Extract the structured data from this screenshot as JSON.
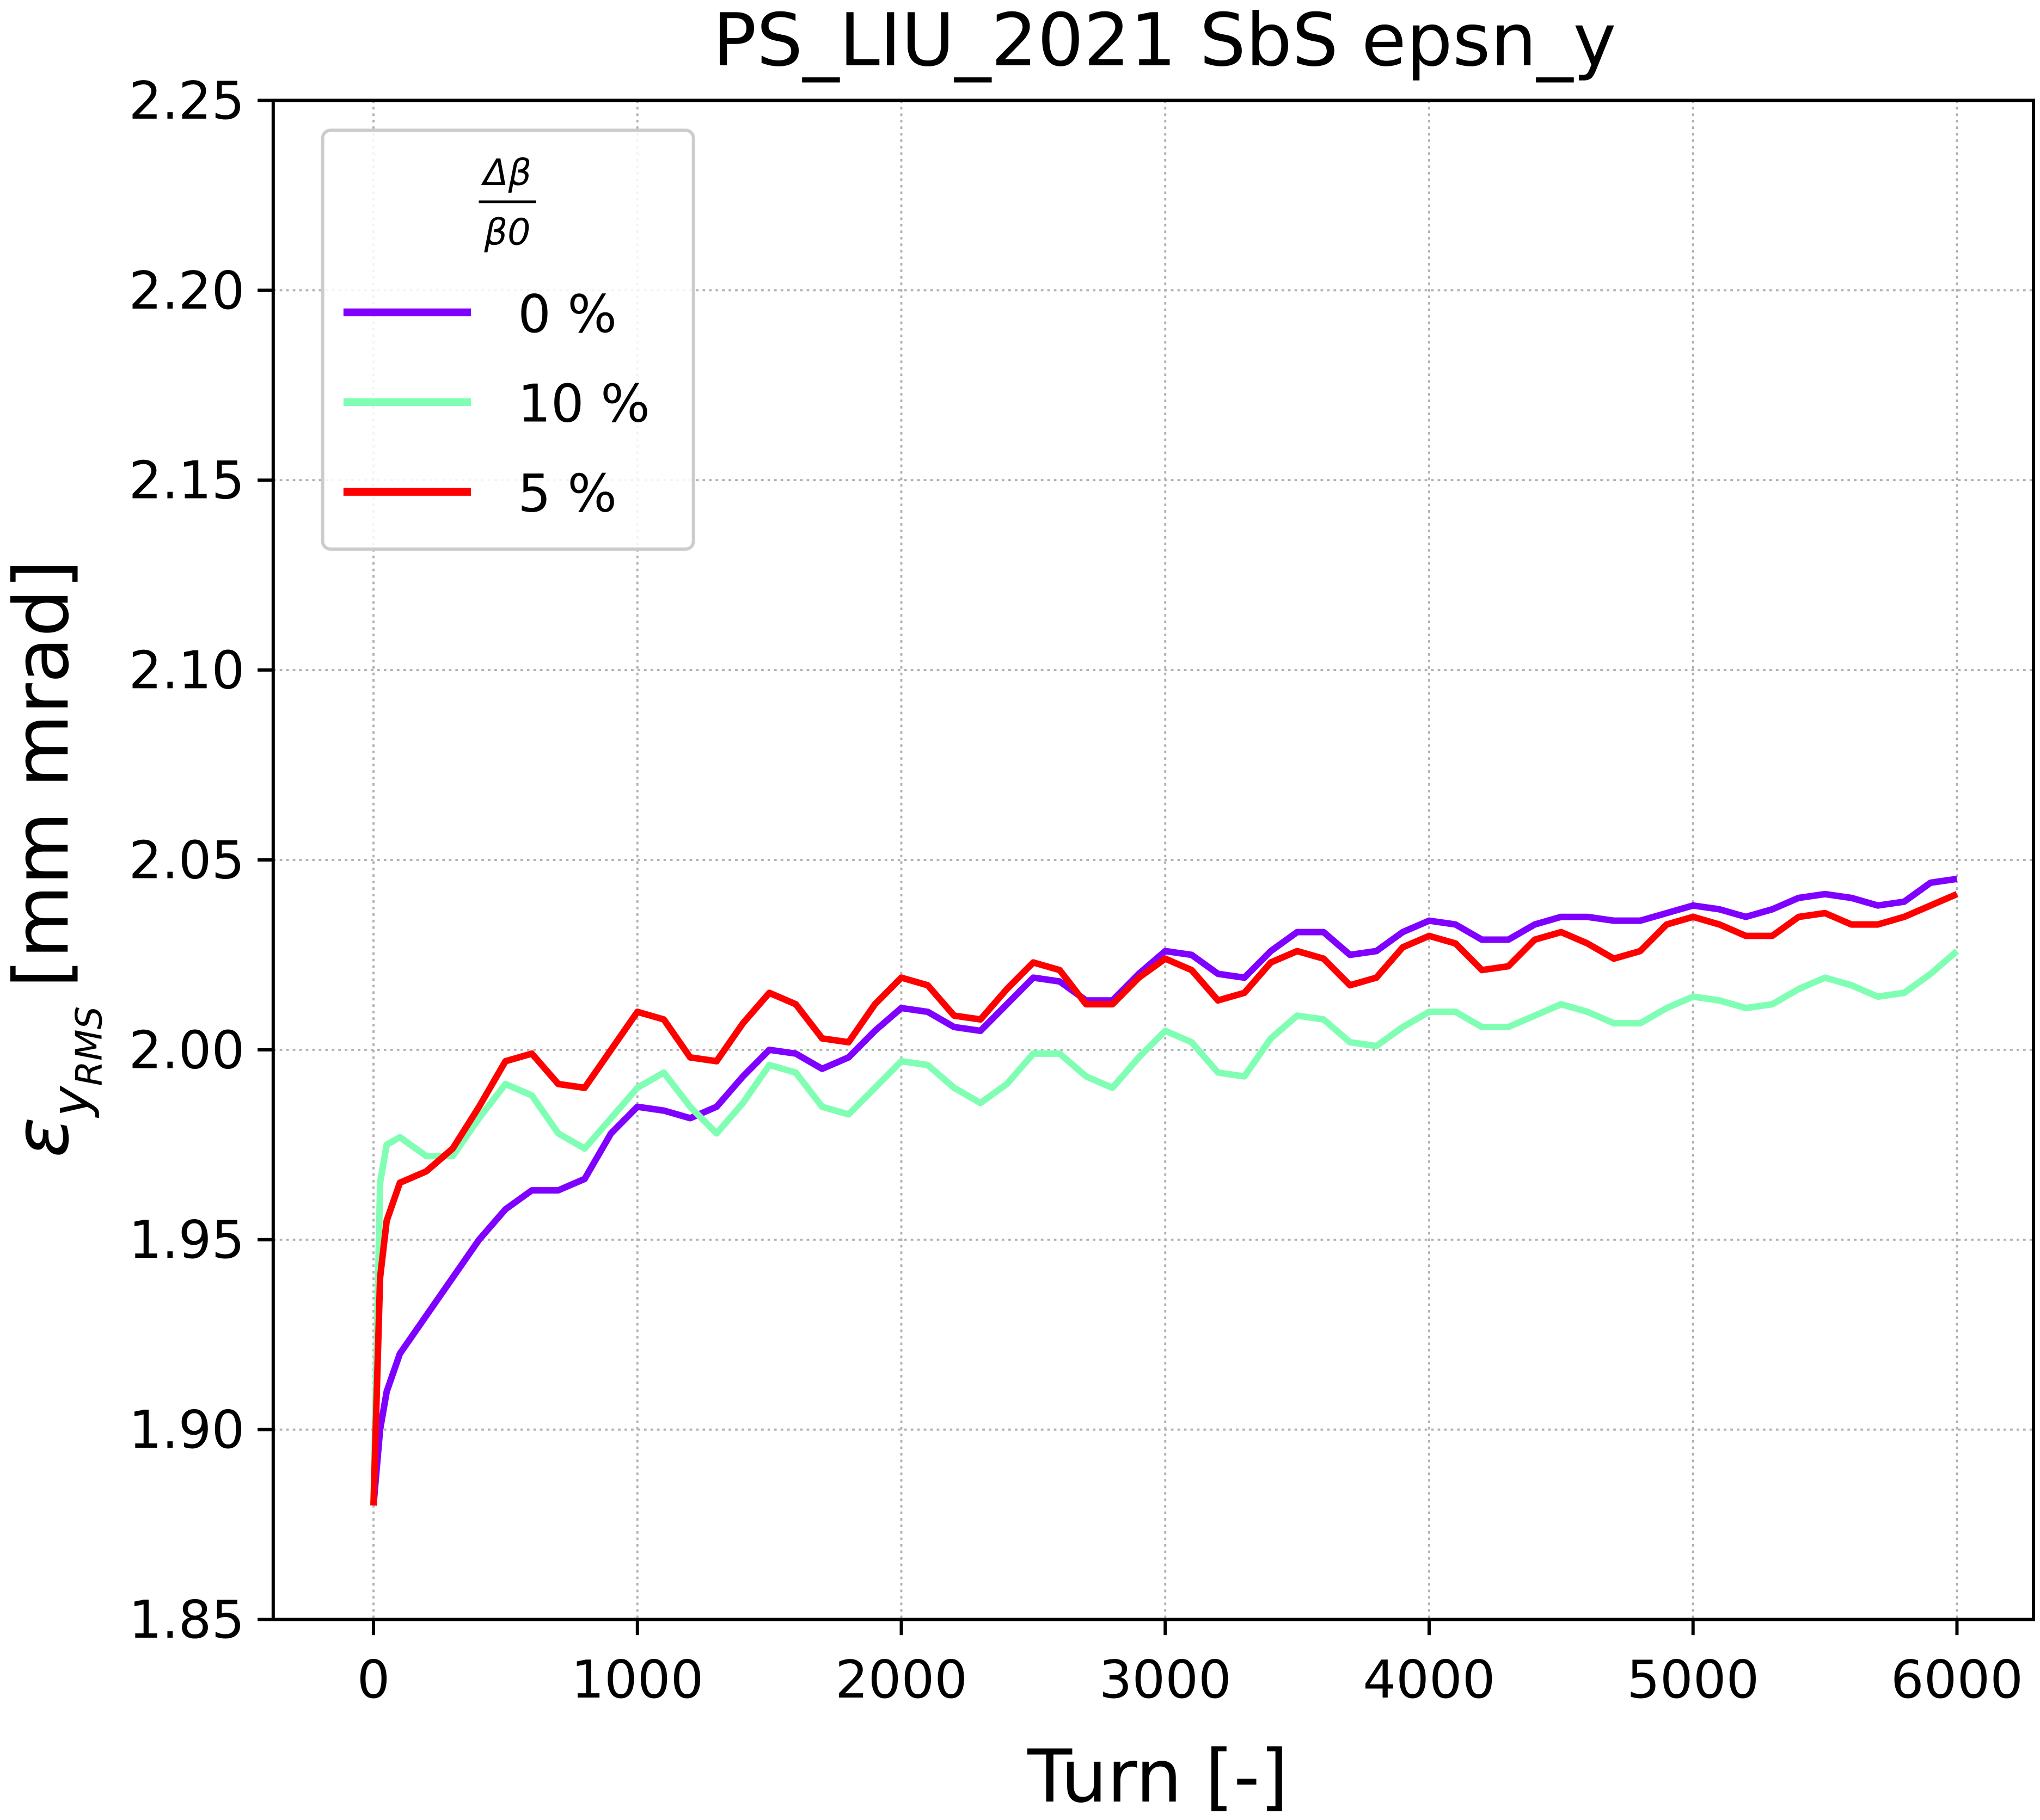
{
  "chart_data": {
    "type": "line",
    "title": "PS_LIU_2021 SbS epsn_y",
    "xlabel": "Turn [-]",
    "ylabel": {
      "symbol": "ε",
      "sub": "y",
      "subsub": "RMS",
      "unit": "[mm mrad]"
    },
    "legend_title": {
      "numerator": "Δβ",
      "denominator": "β0"
    },
    "legend": "upper left",
    "grid": true,
    "xlim": [
      -380,
      6290
    ],
    "xticks": [
      0,
      1000,
      2000,
      3000,
      4000,
      5000,
      6000
    ],
    "ylim": [
      1.85,
      2.25
    ],
    "yticks": [
      1.85,
      {
        "value": 1.9,
        "label": "1.90"
      },
      1.95,
      {
        "value": 2.0,
        "label": "2.00"
      },
      2.05,
      {
        "value": 2.1,
        "label": "2.10"
      },
      2.15,
      {
        "value": 2.2,
        "label": "2.20"
      },
      2.25
    ],
    "x": [
      0,
      25,
      50,
      100,
      200,
      300,
      400,
      500,
      600,
      700,
      800,
      900,
      1000,
      1100,
      1200,
      1300,
      1400,
      1500,
      1600,
      1700,
      1800,
      1900,
      2000,
      2100,
      2200,
      2300,
      2400,
      2500,
      2600,
      2700,
      2800,
      2900,
      3000,
      3100,
      3200,
      3300,
      3400,
      3500,
      3600,
      3700,
      3800,
      3900,
      4000,
      4100,
      4200,
      4300,
      4400,
      4500,
      4600,
      4700,
      4800,
      4900,
      5000,
      5100,
      5200,
      5300,
      5400,
      5500,
      5600,
      5700,
      5800,
      5900,
      6000
    ],
    "series": [
      {
        "name": "0 %",
        "color": "#7f00ff",
        "values": [
          1.88,
          1.9,
          1.91,
          1.92,
          1.93,
          1.94,
          1.95,
          1.958,
          1.963,
          1.963,
          1.966,
          1.978,
          1.985,
          1.984,
          1.982,
          1.985,
          1.993,
          2.0,
          1.999,
          1.995,
          1.998,
          2.005,
          2.011,
          2.01,
          2.006,
          2.005,
          2.012,
          2.019,
          2.018,
          2.013,
          2.013,
          2.02,
          2.026,
          2.025,
          2.02,
          2.019,
          2.026,
          2.031,
          2.031,
          2.025,
          2.026,
          2.031,
          2.034,
          2.033,
          2.029,
          2.029,
          2.033,
          2.035,
          2.035,
          2.034,
          2.034,
          2.036,
          2.038,
          2.037,
          2.035,
          2.037,
          2.04,
          2.041,
          2.04,
          2.038,
          2.039,
          2.044,
          2.045
        ]
      },
      {
        "name": "10 %",
        "color": "#80ffb4",
        "values": [
          1.88,
          1.965,
          1.975,
          1.977,
          1.972,
          1.972,
          1.982,
          1.991,
          1.988,
          1.978,
          1.974,
          1.982,
          1.99,
          1.994,
          1.985,
          1.978,
          1.986,
          1.996,
          1.994,
          1.985,
          1.983,
          1.99,
          1.997,
          1.996,
          1.99,
          1.986,
          1.991,
          1.999,
          1.999,
          1.993,
          1.99,
          1.998,
          2.005,
          2.002,
          1.994,
          1.993,
          2.003,
          2.009,
          2.008,
          2.002,
          2.001,
          2.006,
          2.01,
          2.01,
          2.006,
          2.006,
          2.009,
          2.012,
          2.01,
          2.007,
          2.007,
          2.011,
          2.014,
          2.013,
          2.011,
          2.012,
          2.016,
          2.019,
          2.017,
          2.014,
          2.015,
          2.02,
          2.026
        ]
      },
      {
        "name": "5 %",
        "color": "#ff0000",
        "values": [
          1.88,
          1.94,
          1.955,
          1.965,
          1.968,
          1.974,
          1.985,
          1.997,
          1.999,
          1.991,
          1.99,
          2.0,
          2.01,
          2.008,
          1.998,
          1.997,
          2.007,
          2.015,
          2.012,
          2.003,
          2.002,
          2.012,
          2.019,
          2.017,
          2.009,
          2.008,
          2.016,
          2.023,
          2.021,
          2.012,
          2.012,
          2.019,
          2.024,
          2.021,
          2.013,
          2.015,
          2.023,
          2.026,
          2.024,
          2.017,
          2.019,
          2.027,
          2.03,
          2.028,
          2.021,
          2.022,
          2.029,
          2.031,
          2.028,
          2.024,
          2.026,
          2.033,
          2.035,
          2.033,
          2.03,
          2.03,
          2.035,
          2.036,
          2.033,
          2.033,
          2.035,
          2.038,
          2.041
        ]
      }
    ]
  }
}
